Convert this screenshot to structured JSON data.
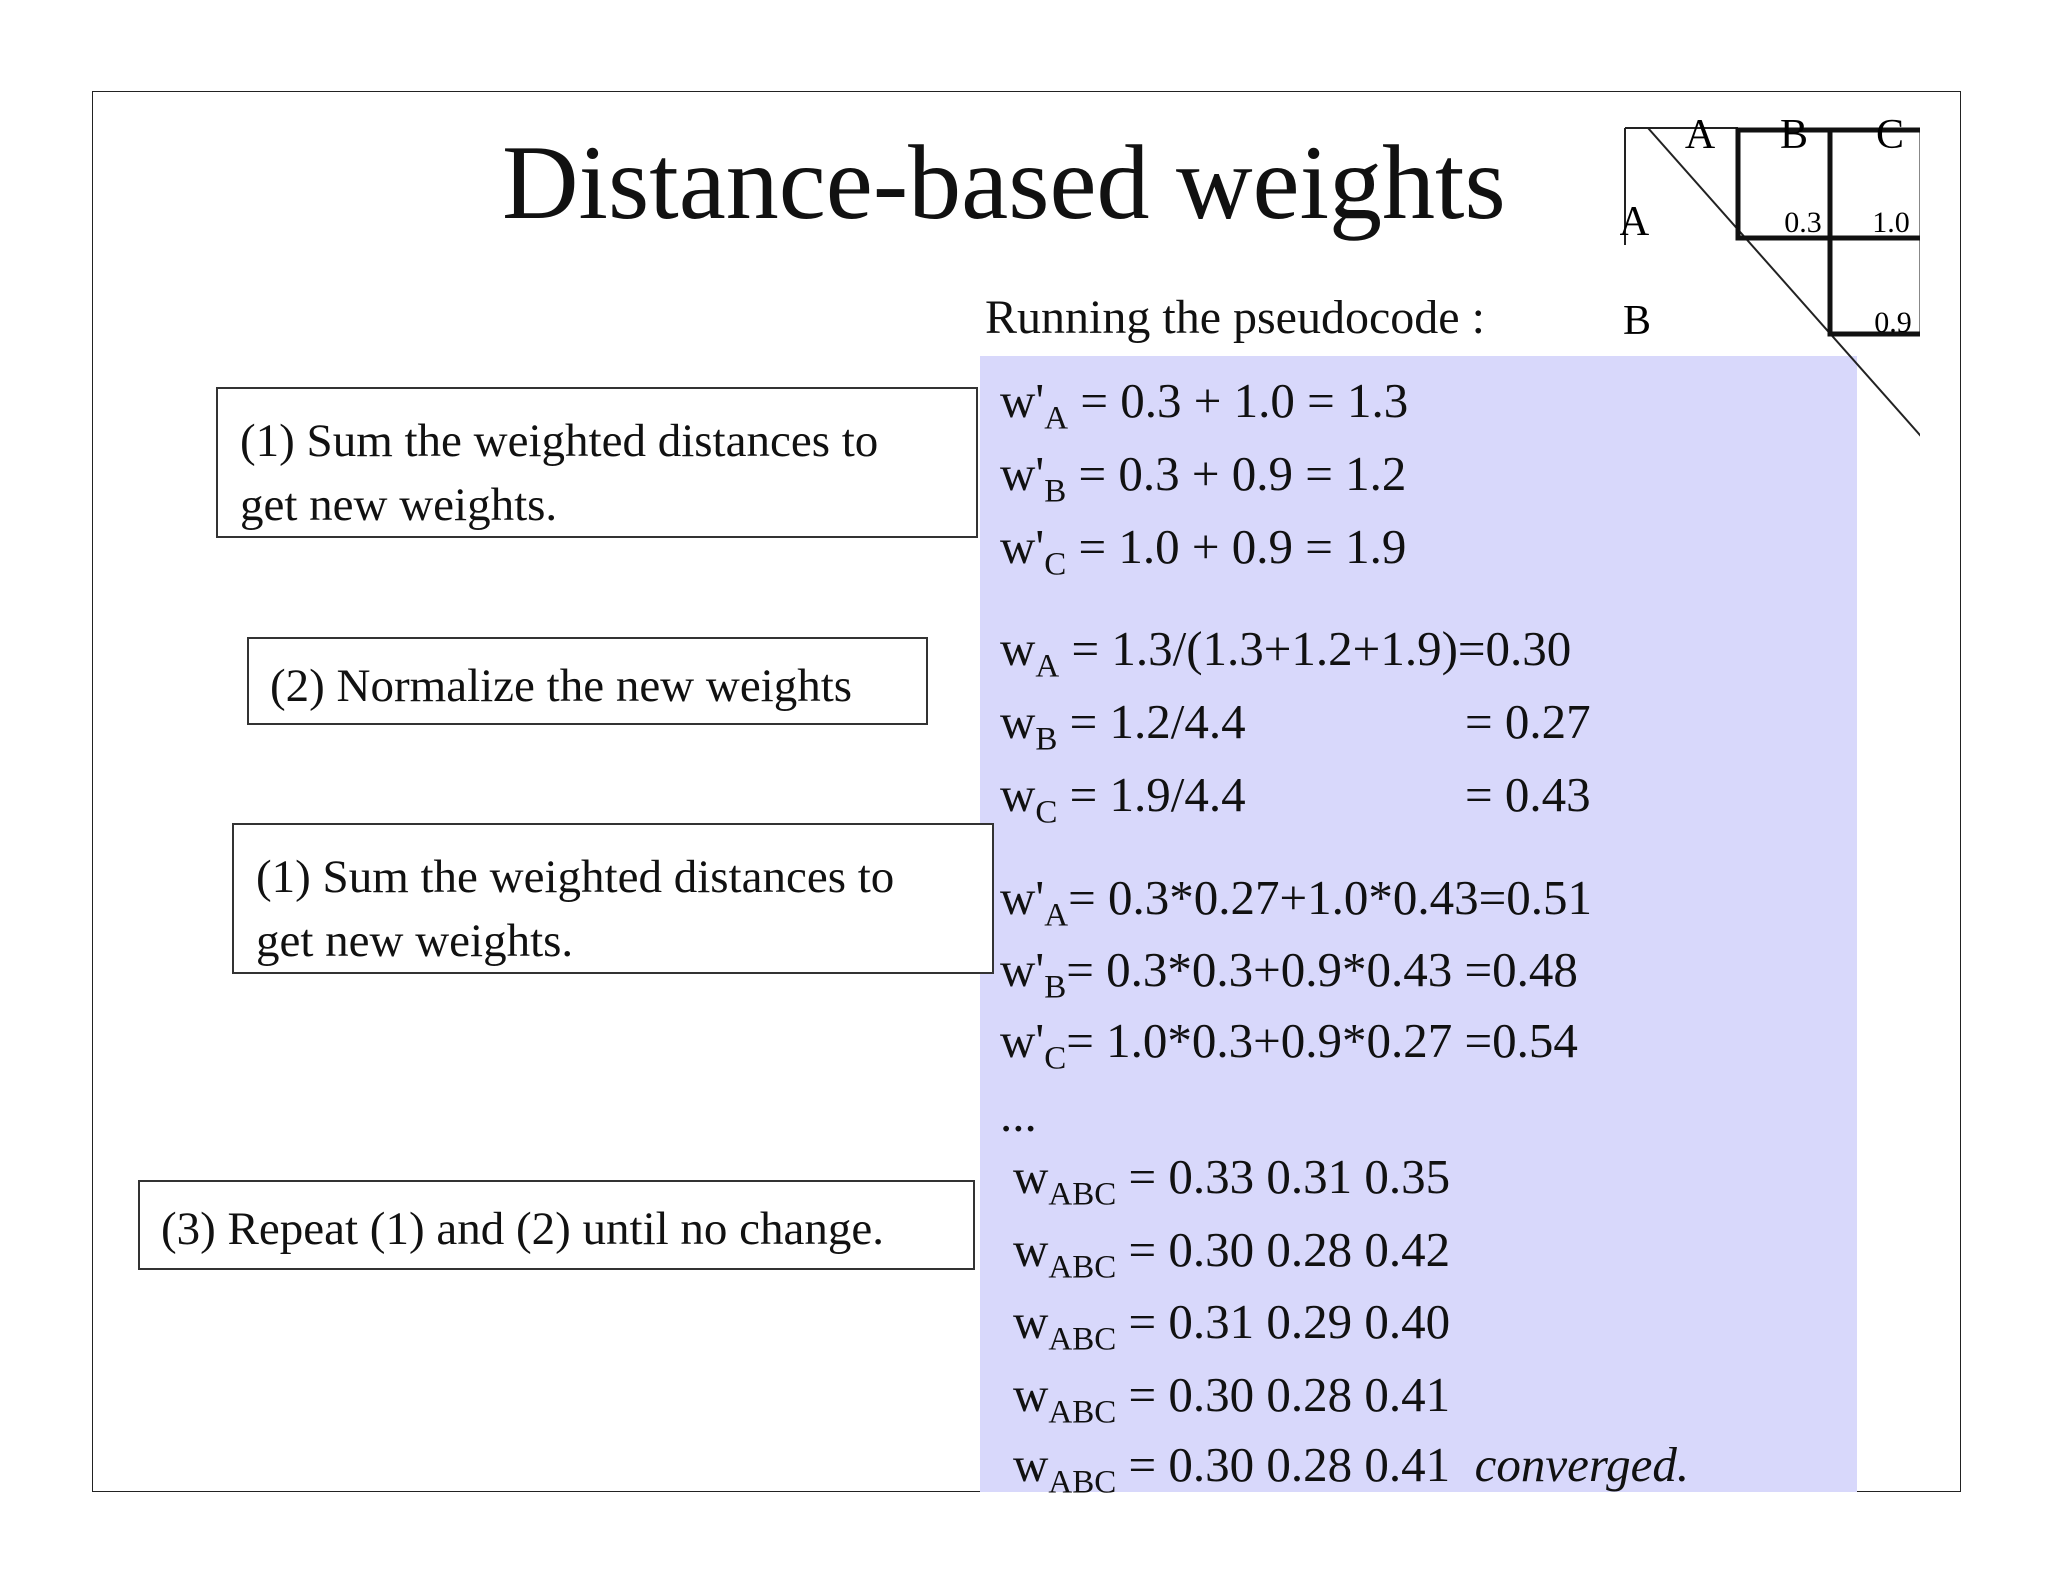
{
  "title": "Distance-based weights",
  "subtitle": "Running the pseudocode :",
  "matrix": {
    "col_labels": [
      "A",
      "B",
      "C"
    ],
    "row_labels": [
      "A",
      "B"
    ],
    "ab": "0.3",
    "ac": "1.0",
    "bc": "0.9"
  },
  "steps": [
    {
      "label_l1": "(1) Sum the weighted distances to",
      "label_l2": "get new weights."
    },
    {
      "label": "(2) Normalize the new weights"
    },
    {
      "label_l1": "(1) Sum the weighted distances to",
      "label_l2": "get new weights."
    },
    {
      "label": "(3) Repeat (1) and (2) until no change."
    }
  ],
  "calc1": [
    {
      "sub": "A",
      "expr": "= 0.3 + 1.0 = 1.3"
    },
    {
      "sub": "B",
      "expr": "= 0.3 + 0.9 = 1.2"
    },
    {
      "sub": "C",
      "expr": "= 1.0 + 0.9 = 1.9"
    }
  ],
  "calc2": [
    {
      "sub": "A",
      "expr": "= 1.3/(1.3+1.2+1.9)=0.30",
      "result": ""
    },
    {
      "sub": "B",
      "expr": "= 1.2/4.4",
      "result": "= 0.27"
    },
    {
      "sub": "C",
      "expr": "= 1.9/4.4",
      "result": "= 0.43"
    }
  ],
  "calc3": [
    {
      "sub": "A",
      "expr": "= 0.3*0.27+1.0*0.43=0.51"
    },
    {
      "sub": "B",
      "expr": "= 0.3*0.3+0.9*0.43  =0.48"
    },
    {
      "sub": "C",
      "expr": "= 1.0*0.3+0.9*0.27  =0.54"
    }
  ],
  "ellipsis": "...",
  "iter_sub": "ABC",
  "iterations": [
    {
      "vals": "= 0.33  0.31  0.35",
      "note": ""
    },
    {
      "vals": "= 0.30  0.28  0.42",
      "note": ""
    },
    {
      "vals": "= 0.31  0.29  0.40",
      "note": ""
    },
    {
      "vals": "= 0.30  0.28  0.41",
      "note": ""
    },
    {
      "vals": "= 0.30  0.28  0.41",
      "note": "converged."
    }
  ]
}
